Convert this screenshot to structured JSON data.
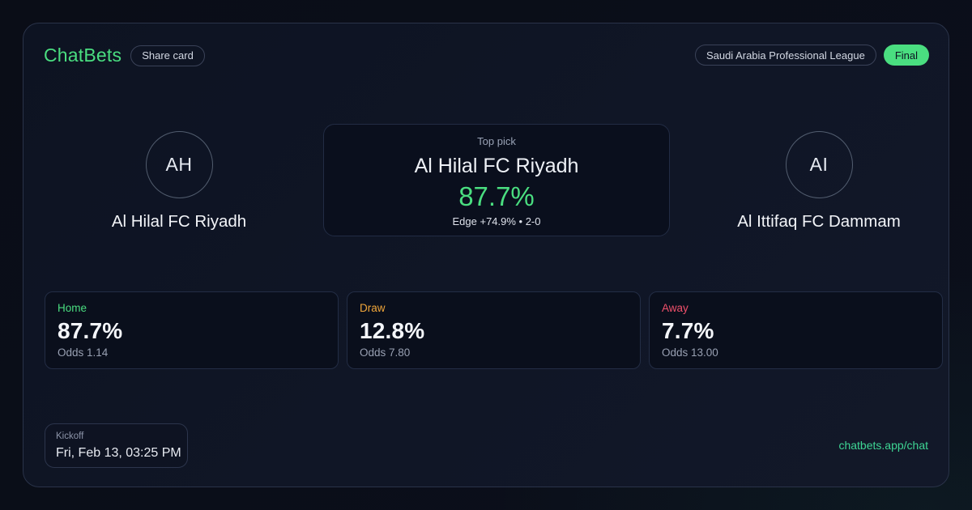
{
  "brand": {
    "name": "ChatBets",
    "share_button": "Share card"
  },
  "header": {
    "league": "Saudi Arabia Professional League",
    "status": "Final"
  },
  "match": {
    "home_team": {
      "initials": "AH",
      "name": "Al Hilal FC Riyadh"
    },
    "away_team": {
      "initials": "AI",
      "name": "Al Ittifaq FC Dammam"
    },
    "top_pick": {
      "label": "Top pick",
      "team": "Al Hilal FC Riyadh",
      "probability": "87.7%",
      "edge": "Edge +74.9% • 2-0"
    }
  },
  "odds": [
    {
      "label": "Home",
      "probability": "87.7%",
      "odds": "Odds 1.14",
      "color": "#4ade80"
    },
    {
      "label": "Draw",
      "probability": "12.8%",
      "odds": "Odds 7.80",
      "color": "#f0a63a"
    },
    {
      "label": "Away",
      "probability": "7.7%",
      "odds": "Odds 13.00",
      "color": "#f0506b"
    }
  ],
  "footer": {
    "kickoff_label": "Kickoff",
    "kickoff_time": "Fri, Feb 13, 03:25 PM",
    "link": "chatbets.app/chat"
  },
  "colors": {
    "accent_green": "#4ade80",
    "link_green": "#3ed694",
    "draw_amber": "#f0a63a",
    "away_rose": "#f0506b",
    "final_badge_bg": "#4ade80",
    "card_background": "#101626",
    "panel_background": "#0a0f1d",
    "page_background": "#0a0d17"
  }
}
